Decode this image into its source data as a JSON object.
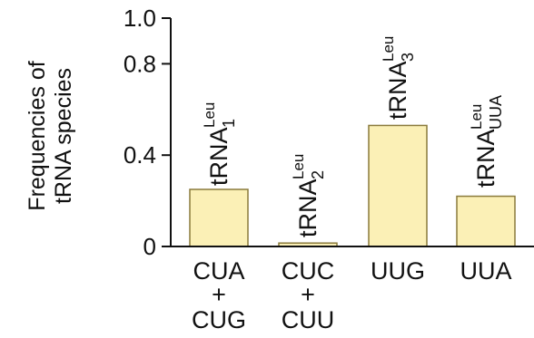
{
  "chart_data": {
    "type": "bar",
    "ylabel_lines": [
      "Frequencies of",
      "tRNA species"
    ],
    "y_ticks": [
      {
        "value": 0,
        "label": "0"
      },
      {
        "value": 0.4,
        "label": "0.4"
      },
      {
        "value": 0.8,
        "label": "0.8"
      },
      {
        "value": 1.0,
        "label": "1.0"
      }
    ],
    "ylim": [
      0,
      1.0
    ],
    "categories": [
      {
        "lines": [
          "CUA",
          "+",
          "CUG"
        ]
      },
      {
        "lines": [
          "CUC",
          "+",
          "CUU"
        ]
      },
      {
        "lines": [
          "UUG"
        ]
      },
      {
        "lines": [
          "UUA"
        ]
      }
    ],
    "values": [
      0.25,
      0.015,
      0.53,
      0.22
    ],
    "bar_labels": [
      {
        "main": "tRNA",
        "sup": "Leu",
        "sub": "1"
      },
      {
        "main": "tRNA",
        "sup": "Leu",
        "sub": "2"
      },
      {
        "main": "tRNA",
        "sup": "Leu",
        "sub": "3"
      },
      {
        "main": "tRNA",
        "sup": "Leu",
        "sub": "UUA"
      }
    ],
    "bar_fill": "#fbf0b6",
    "bar_stroke": "#8a7a3c",
    "axis_color": "#111111",
    "grid": false,
    "legend": "none"
  }
}
